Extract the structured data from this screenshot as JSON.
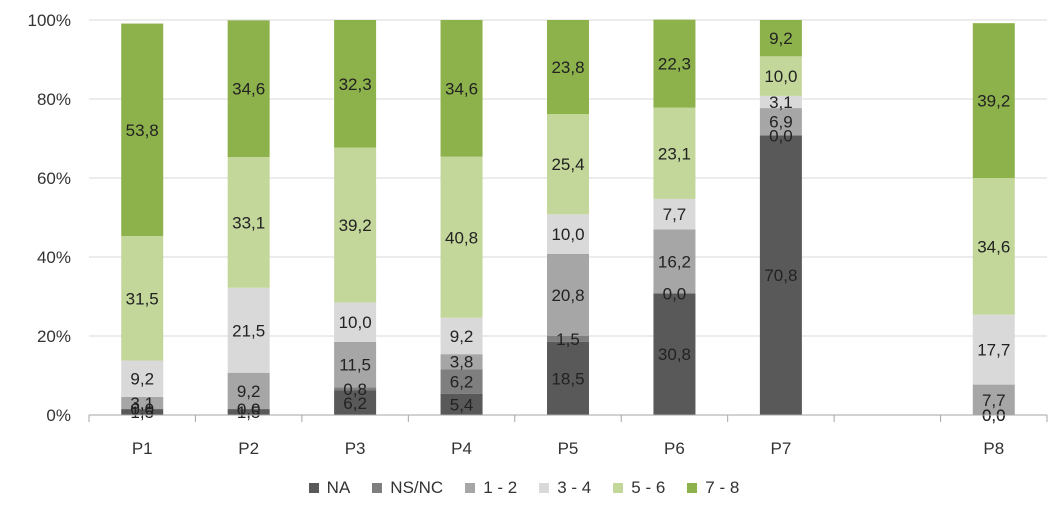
{
  "chart_data": {
    "type": "bar",
    "stacked": true,
    "percent": true,
    "categories": [
      "P1",
      "P2",
      "P3",
      "P4",
      "P5",
      "P6",
      "P7",
      "",
      "P8"
    ],
    "y_ticks": [
      "0%",
      "20%",
      "40%",
      "60%",
      "80%",
      "100%"
    ],
    "ylim": [
      0,
      100
    ],
    "series": [
      {
        "name": "NA",
        "color": "#595959",
        "values": [
          1.5,
          1.5,
          6.2,
          5.4,
          18.5,
          30.8,
          70.8,
          null,
          0.0
        ],
        "labels": [
          "1,5",
          "1,5",
          "6,2",
          "5,4",
          "18,5",
          "30,8",
          "70,8",
          null,
          "0,0"
        ]
      },
      {
        "name": "NS/NC",
        "color": "#7f7f7f",
        "values": [
          0.0,
          0.0,
          0.8,
          6.2,
          1.5,
          0.0,
          0.0,
          null,
          0.0
        ],
        "labels": [
          "0,0",
          "0,0",
          "0,8",
          "6,2",
          "1,5",
          "0,0",
          "0,0",
          null,
          "0,0"
        ]
      },
      {
        "name": "1 - 2",
        "color": "#a6a6a6",
        "values": [
          3.1,
          9.2,
          11.5,
          3.8,
          20.8,
          16.2,
          6.9,
          null,
          7.7
        ],
        "labels": [
          "3,1",
          "9,2",
          "11,5",
          "3,8",
          "20,8",
          "16,2",
          "6,9",
          null,
          "7,7"
        ]
      },
      {
        "name": "3 - 4",
        "color": "#d9d9d9",
        "values": [
          9.2,
          21.5,
          10.0,
          9.2,
          10.0,
          7.7,
          3.1,
          null,
          17.7
        ],
        "labels": [
          "9,2",
          "21,5",
          "10,0",
          "9,2",
          "10,0",
          "7,7",
          "3,1",
          null,
          "17,7"
        ]
      },
      {
        "name": "5 - 6",
        "color": "#c4d79b",
        "values": [
          31.5,
          33.1,
          39.2,
          40.8,
          25.4,
          23.1,
          10.0,
          null,
          34.6
        ],
        "labels": [
          "31,5",
          "33,1",
          "39,2",
          "40,8",
          "25,4",
          "23,1",
          "10,0",
          null,
          "34,6"
        ]
      },
      {
        "name": "7 - 8",
        "color": "#8db24c",
        "values": [
          53.8,
          34.6,
          32.3,
          34.6,
          23.8,
          22.3,
          9.2,
          null,
          39.2
        ],
        "labels": [
          "53,8",
          "34,6",
          "32,3",
          "34,6",
          "23,8",
          "22,3",
          "9,2",
          null,
          "39,2"
        ]
      }
    ],
    "xlabel": "",
    "ylabel": "",
    "legend_position": "bottom",
    "grid": true
  }
}
